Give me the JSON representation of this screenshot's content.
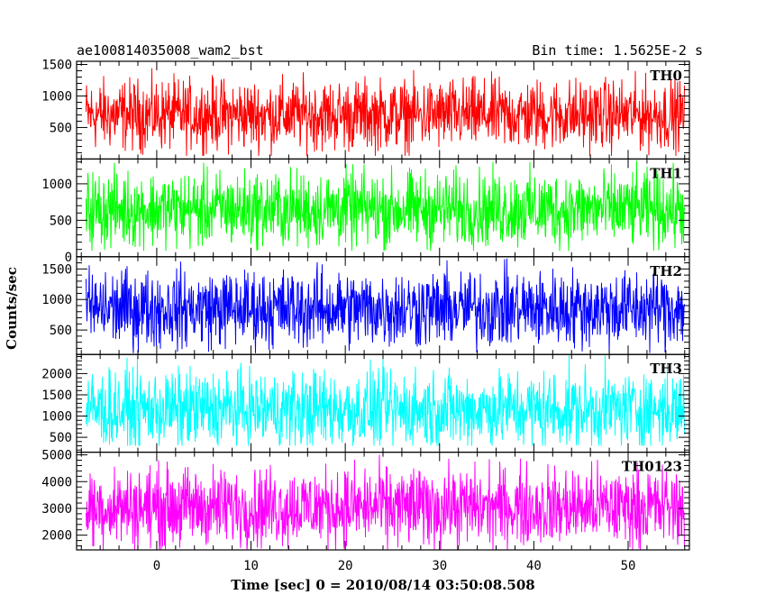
{
  "header": {
    "title_left": "ae100814035008_wam2_bst",
    "title_right": "Bin time: 1.5625E-2 s"
  },
  "chart_data": {
    "type": "line",
    "xlabel": "Time [sec] 0 = 2010/08/14 03:50:08.508",
    "ylabel": "Counts/sec",
    "xlim": [
      -8.5,
      56.5
    ],
    "x_ticks": [
      0,
      10,
      20,
      30,
      40,
      50
    ],
    "data_x_range": [
      -7.5,
      56
    ],
    "bin_time_s": 0.015625,
    "panels": [
      {
        "name": "TH0",
        "color": "#ff0000",
        "ylim": [
          0,
          1550
        ],
        "y_ticks": [
          500,
          1000,
          1500
        ],
        "mean": 700,
        "spread": 750,
        "floor": 50,
        "ceiling": 1550
      },
      {
        "name": "TH1",
        "color": "#00ff00",
        "ylim": [
          0,
          1340
        ],
        "y_ticks": [
          0,
          500,
          1000
        ],
        "mean": 650,
        "spread": 700,
        "floor": 80,
        "ceiling": 1340
      },
      {
        "name": "TH2",
        "color": "#0000ff",
        "ylim": [
          100,
          1700
        ],
        "y_ticks": [
          500,
          1000,
          1500
        ],
        "mean": 850,
        "spread": 850,
        "floor": 120,
        "ceiling": 1700
      },
      {
        "name": "TH3",
        "color": "#00ffff",
        "ylim": [
          150,
          2450
        ],
        "y_ticks": [
          500,
          1000,
          1500,
          2000
        ],
        "mean": 1150,
        "spread": 1250,
        "floor": 300,
        "ceiling": 2450
      },
      {
        "name": "TH0123",
        "color": "#ff00ff",
        "ylim": [
          1450,
          5100
        ],
        "y_ticks": [
          2000,
          3000,
          4000,
          5000
        ],
        "mean": 3050,
        "spread": 2000,
        "floor": 1450,
        "ceiling": 5100
      }
    ]
  }
}
